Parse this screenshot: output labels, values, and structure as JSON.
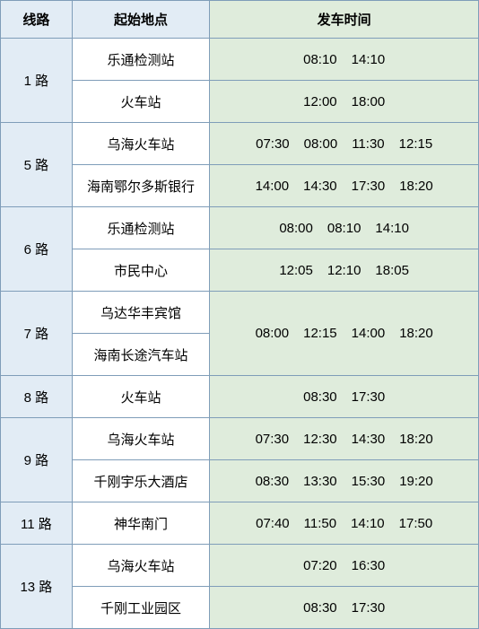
{
  "headers": {
    "route": "线路",
    "location": "起始地点",
    "time": "发车时间"
  },
  "routes": [
    {
      "name": "1 路",
      "rows": [
        {
          "location": "乐通检测站",
          "times": [
            "08:10",
            "14:10"
          ]
        },
        {
          "location": "火车站",
          "times": [
            "12:00",
            "18:00"
          ]
        }
      ]
    },
    {
      "name": "5 路",
      "rows": [
        {
          "location": "乌海火车站",
          "times": [
            "07:30",
            "08:00",
            "11:30",
            "12:15"
          ]
        },
        {
          "location": "海南鄂尔多斯银行",
          "times": [
            "14:00",
            "14:30",
            "17:30",
            "18:20"
          ]
        }
      ]
    },
    {
      "name": "6 路",
      "rows": [
        {
          "location": "乐通检测站",
          "times": [
            "08:00",
            "08:10",
            "14:10"
          ]
        },
        {
          "location": "市民中心",
          "times": [
            "12:05",
            "12:10",
            "18:05"
          ]
        }
      ]
    },
    {
      "name": "7 路",
      "merged_times": [
        "08:00",
        "12:15",
        "14:00",
        "18:20"
      ],
      "rows": [
        {
          "location": "乌达华丰宾馆"
        },
        {
          "location": "海南长途汽车站"
        }
      ]
    },
    {
      "name": "8 路",
      "rows": [
        {
          "location": "火车站",
          "times": [
            "08:30",
            "17:30"
          ]
        }
      ]
    },
    {
      "name": "9 路",
      "rows": [
        {
          "location": "乌海火车站",
          "times": [
            "07:30",
            "12:30",
            "14:30",
            "18:20"
          ]
        },
        {
          "location": "千刚宇乐大酒店",
          "times": [
            "08:30",
            "13:30",
            "15:30",
            "19:20"
          ]
        }
      ]
    },
    {
      "name": "11 路",
      "rows": [
        {
          "location": "神华南门",
          "times": [
            "07:40",
            "11:50",
            "14:10",
            "17:50"
          ]
        }
      ]
    },
    {
      "name": "13 路",
      "rows": [
        {
          "location": "乌海火车站",
          "times": [
            "07:20",
            "16:30"
          ]
        },
        {
          "location": "千刚工业园区",
          "times": [
            "08:30",
            "17:30"
          ]
        }
      ]
    }
  ]
}
